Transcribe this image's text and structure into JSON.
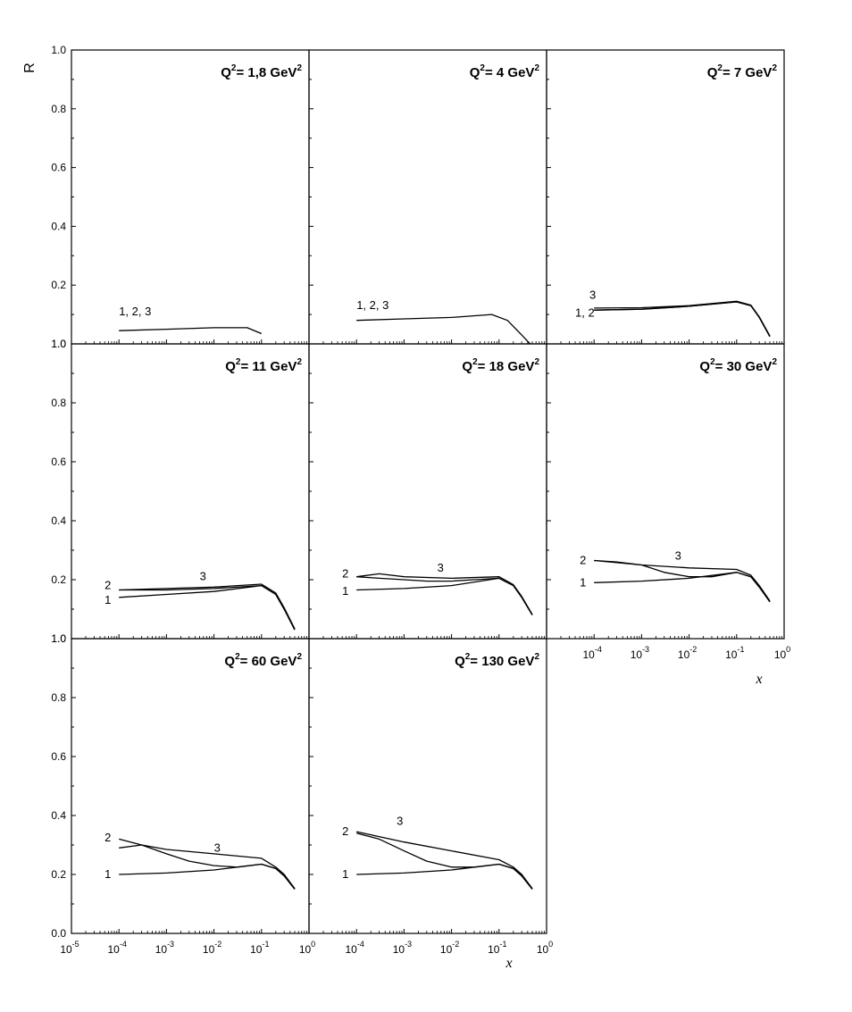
{
  "chart_data": {
    "type": "line",
    "x_scale": "log",
    "y_range": [
      0.0,
      1.0
    ],
    "x_range": [
      1e-05,
      1
    ],
    "ylabel": "R",
    "xlabel": "x",
    "y_ticks": [
      "0.0",
      "0.2",
      "0.4",
      "0.6",
      "0.8",
      "1.0"
    ],
    "x_tick_labels": [
      {
        "base": "10",
        "exp": "-5"
      },
      {
        "base": "10",
        "exp": "-4"
      },
      {
        "base": "10",
        "exp": "-3"
      },
      {
        "base": "10",
        "exp": "-2"
      },
      {
        "base": "10",
        "exp": "-1"
      },
      {
        "base": "10",
        "exp": "0"
      }
    ],
    "panels": [
      {
        "title": "Q²= 1,8 GeV²",
        "title_main": "Q",
        "title_q_exp": "2",
        "title_mid": "= 1,8 GeV",
        "title_unit_exp": "2",
        "labels": [
          {
            "text": "1, 2, 3",
            "x": 0.0001,
            "y": 0.11
          }
        ],
        "series": [
          {
            "name": "1, 2, 3",
            "x": [
              0.0001,
              0.001,
              0.01,
              0.05,
              0.1
            ],
            "y": [
              0.045,
              0.05,
              0.055,
              0.055,
              0.035
            ]
          }
        ]
      },
      {
        "title": "Q²= 4 GeV²",
        "title_main": "Q",
        "title_q_exp": "2",
        "title_mid": "= 4 GeV",
        "title_unit_exp": "2",
        "labels": [
          {
            "text": "1, 2, 3",
            "x": 0.0001,
            "y": 0.13
          }
        ],
        "series": [
          {
            "name": "1, 2, 3",
            "x": [
              0.0001,
              0.001,
              0.01,
              0.07,
              0.15,
              0.3,
              0.45
            ],
            "y": [
              0.08,
              0.085,
              0.09,
              0.1,
              0.08,
              0.03,
              0.0
            ]
          }
        ]
      },
      {
        "title": "Q²= 7 GeV²",
        "title_main": "Q",
        "title_q_exp": "2",
        "title_mid": "= 7 GeV",
        "title_unit_exp": "2",
        "labels": [
          {
            "text": "3",
            "x": 8e-05,
            "y": 0.165
          },
          {
            "text": "1, 2",
            "x": 4e-05,
            "y": 0.105
          }
        ],
        "series": [
          {
            "name": "1",
            "x": [
              0.0001,
              0.001,
              0.01,
              0.1,
              0.2,
              0.3,
              0.5
            ],
            "y": [
              0.115,
              0.118,
              0.128,
              0.143,
              0.13,
              0.09,
              0.025
            ]
          },
          {
            "name": "2",
            "x": [
              0.0001,
              0.001,
              0.01,
              0.1,
              0.2,
              0.3,
              0.5
            ],
            "y": [
              0.115,
              0.118,
              0.128,
              0.143,
              0.13,
              0.09,
              0.025
            ]
          },
          {
            "name": "3",
            "x": [
              0.0001,
              0.001,
              0.01,
              0.1,
              0.2,
              0.3,
              0.5
            ],
            "y": [
              0.122,
              0.123,
              0.13,
              0.145,
              0.132,
              0.092,
              0.027
            ]
          }
        ]
      },
      {
        "title": "Q²= 11 GeV²",
        "title_main": "Q",
        "title_q_exp": "2",
        "title_mid": "= 11 GeV",
        "title_unit_exp": "2",
        "labels": [
          {
            "text": "2",
            "x": 5e-05,
            "y": 0.18
          },
          {
            "text": "1",
            "x": 5e-05,
            "y": 0.13
          },
          {
            "text": "3",
            "x": 0.005,
            "y": 0.21
          }
        ],
        "series": [
          {
            "name": "1",
            "x": [
              0.0001,
              0.001,
              0.01,
              0.1,
              0.2,
              0.3,
              0.5
            ],
            "y": [
              0.14,
              0.15,
              0.16,
              0.18,
              0.15,
              0.1,
              0.03
            ]
          },
          {
            "name": "2",
            "x": [
              0.0001,
              0.001,
              0.01,
              0.1,
              0.2,
              0.3,
              0.5
            ],
            "y": [
              0.165,
              0.165,
              0.17,
              0.18,
              0.15,
              0.1,
              0.03
            ]
          },
          {
            "name": "3",
            "x": [
              0.0001,
              0.001,
              0.01,
              0.1,
              0.2,
              0.3,
              0.5
            ],
            "y": [
              0.165,
              0.17,
              0.175,
              0.185,
              0.155,
              0.105,
              0.033
            ]
          }
        ]
      },
      {
        "title": "Q²= 18 GeV²",
        "title_main": "Q",
        "title_q_exp": "2",
        "title_mid": "= 18 GeV",
        "title_unit_exp": "2",
        "labels": [
          {
            "text": "2",
            "x": 5e-05,
            "y": 0.22
          },
          {
            "text": "1",
            "x": 5e-05,
            "y": 0.16
          },
          {
            "text": "3",
            "x": 0.005,
            "y": 0.24
          }
        ],
        "series": [
          {
            "name": "1",
            "x": [
              0.0001,
              0.001,
              0.01,
              0.1,
              0.2,
              0.3,
              0.5
            ],
            "y": [
              0.165,
              0.17,
              0.18,
              0.205,
              0.18,
              0.14,
              0.08
            ]
          },
          {
            "name": "2",
            "x": [
              0.0001,
              0.0003,
              0.001,
              0.003,
              0.01,
              0.03,
              0.1,
              0.2,
              0.3,
              0.5
            ],
            "y": [
              0.21,
              0.205,
              0.2,
              0.195,
              0.195,
              0.2,
              0.205,
              0.18,
              0.14,
              0.08
            ]
          },
          {
            "name": "3",
            "x": [
              0.0001,
              0.0003,
              0.001,
              0.01,
              0.1,
              0.2,
              0.3,
              0.5
            ],
            "y": [
              0.21,
              0.22,
              0.21,
              0.205,
              0.21,
              0.183,
              0.143,
              0.082
            ]
          }
        ]
      },
      {
        "title": "Q²= 30 GeV²",
        "title_main": "Q",
        "title_q_exp": "2",
        "title_mid": "= 30 GeV",
        "title_unit_exp": "2",
        "labels": [
          {
            "text": "2",
            "x": 5e-05,
            "y": 0.265
          },
          {
            "text": "1",
            "x": 5e-05,
            "y": 0.19
          },
          {
            "text": "3",
            "x": 0.005,
            "y": 0.28
          }
        ],
        "series": [
          {
            "name": "1",
            "x": [
              0.0001,
              0.001,
              0.01,
              0.1,
              0.2,
              0.3,
              0.5
            ],
            "y": [
              0.19,
              0.195,
              0.205,
              0.225,
              0.21,
              0.175,
              0.125
            ]
          },
          {
            "name": "2",
            "x": [
              0.0001,
              0.0003,
              0.001,
              0.003,
              0.01,
              0.03,
              0.1,
              0.2,
              0.3,
              0.5
            ],
            "y": [
              0.265,
              0.26,
              0.25,
              0.225,
              0.21,
              0.21,
              0.225,
              0.21,
              0.175,
              0.125
            ]
          },
          {
            "name": "3",
            "x": [
              0.0001,
              0.001,
              0.01,
              0.1,
              0.2,
              0.3,
              0.5
            ],
            "y": [
              0.265,
              0.25,
              0.24,
              0.235,
              0.215,
              0.18,
              0.128
            ]
          }
        ]
      },
      {
        "title": "Q²= 60 GeV²",
        "title_main": "Q",
        "title_q_exp": "2",
        "title_mid": "= 60 GeV",
        "title_unit_exp": "2",
        "labels": [
          {
            "text": "2",
            "x": 5e-05,
            "y": 0.325
          },
          {
            "text": "1",
            "x": 5e-05,
            "y": 0.2
          },
          {
            "text": "3",
            "x": 0.01,
            "y": 0.29
          }
        ],
        "series": [
          {
            "name": "1",
            "x": [
              0.0001,
              0.001,
              0.01,
              0.1,
              0.2,
              0.3,
              0.5
            ],
            "y": [
              0.2,
              0.205,
              0.215,
              0.235,
              0.22,
              0.195,
              0.15
            ]
          },
          {
            "name": "2",
            "x": [
              0.0001,
              0.0003,
              0.001,
              0.003,
              0.01,
              0.03,
              0.1,
              0.2,
              0.3,
              0.5
            ],
            "y": [
              0.32,
              0.3,
              0.27,
              0.245,
              0.23,
              0.225,
              0.235,
              0.22,
              0.195,
              0.15
            ]
          },
          {
            "name": "3",
            "x": [
              0.0001,
              0.0003,
              0.001,
              0.01,
              0.1,
              0.2,
              0.3,
              0.5
            ],
            "y": [
              0.29,
              0.3,
              0.285,
              0.27,
              0.255,
              0.225,
              0.2,
              0.152
            ]
          }
        ]
      },
      {
        "title": "Q²= 130 GeV²",
        "title_main": "Q",
        "title_q_exp": "2",
        "title_mid": "= 130 GeV",
        "title_unit_exp": "2",
        "labels": [
          {
            "text": "2",
            "x": 5e-05,
            "y": 0.345
          },
          {
            "text": "1",
            "x": 5e-05,
            "y": 0.2
          },
          {
            "text": "3",
            "x": 0.0007,
            "y": 0.38
          }
        ],
        "series": [
          {
            "name": "1",
            "x": [
              0.0001,
              0.001,
              0.01,
              0.1,
              0.2,
              0.3,
              0.5
            ],
            "y": [
              0.2,
              0.205,
              0.215,
              0.235,
              0.22,
              0.195,
              0.15
            ]
          },
          {
            "name": "2",
            "x": [
              0.0001,
              0.0003,
              0.001,
              0.003,
              0.01,
              0.03,
              0.1,
              0.2,
              0.3,
              0.5
            ],
            "y": [
              0.34,
              0.32,
              0.28,
              0.245,
              0.225,
              0.225,
              0.235,
              0.22,
              0.195,
              0.15
            ]
          },
          {
            "name": "3",
            "x": [
              0.0001,
              0.001,
              0.01,
              0.1,
              0.2,
              0.3,
              0.5
            ],
            "y": [
              0.345,
              0.31,
              0.28,
              0.25,
              0.225,
              0.2,
              0.152
            ]
          }
        ]
      }
    ]
  }
}
